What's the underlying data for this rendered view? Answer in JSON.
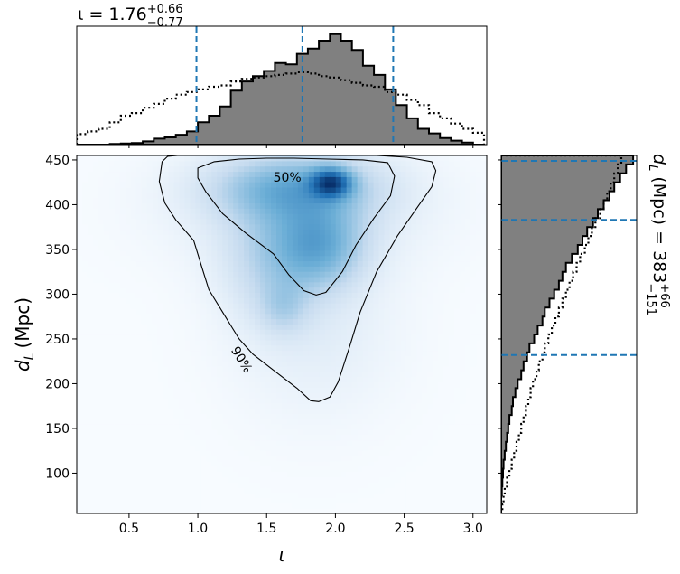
{
  "chart_data": {
    "type": "corner",
    "colors": {
      "density_colormap": [
        "#f7fbff",
        "#c6dbef",
        "#6baed6",
        "#2171b5",
        "#08306b"
      ],
      "histogram_fill": "#808080",
      "quantile_line": "#1f77b4",
      "outline": "#000000"
    },
    "joint": {
      "type": "heatmap",
      "xlabel": "ι",
      "ylabel_main": "d",
      "ylabel_sub": "L",
      "ylabel_unit": "(Mpc)",
      "xlim": [
        0.12,
        3.1
      ],
      "ylim": [
        55,
        455
      ],
      "xticks": [
        0.5,
        1.0,
        1.5,
        2.0,
        2.5,
        3.0
      ],
      "xtick_labels": [
        "0.5",
        "1.0",
        "1.5",
        "2.0",
        "2.5",
        "3.0"
      ],
      "yticks": [
        100,
        150,
        200,
        250,
        300,
        350,
        400,
        450
      ],
      "ytick_labels": [
        "100",
        "150",
        "200",
        "250",
        "300",
        "350",
        "400",
        "450"
      ],
      "density_components": [
        {
          "x": 1.97,
          "y": 425,
          "sx": 0.1,
          "sy": 11,
          "w": 1.0
        },
        {
          "x": 1.7,
          "y": 420,
          "sx": 0.4,
          "sy": 25,
          "w": 0.55
        },
        {
          "x": 1.9,
          "y": 355,
          "sx": 0.22,
          "sy": 32,
          "w": 0.55
        },
        {
          "x": 1.55,
          "y": 340,
          "sx": 0.25,
          "sy": 45,
          "w": 0.3
        },
        {
          "x": 1.62,
          "y": 285,
          "sx": 0.12,
          "sy": 20,
          "w": 0.22
        },
        {
          "x": 1.85,
          "y": 270,
          "sx": 0.4,
          "sy": 70,
          "w": 0.12
        },
        {
          "x": 1.75,
          "y": 400,
          "sx": 0.6,
          "sy": 45,
          "w": 0.18
        }
      ],
      "contours": [
        {
          "label": "50%",
          "label_at": [
            1.65,
            431
          ],
          "label_rotation": 0,
          "points": [
            [
              1.0,
              441
            ],
            [
              1.12,
              448
            ],
            [
              1.3,
              451
            ],
            [
              1.5,
              452
            ],
            [
              1.7,
              452
            ],
            [
              1.95,
              451
            ],
            [
              2.2,
              450
            ],
            [
              2.38,
              447
            ],
            [
              2.43,
              432
            ],
            [
              2.4,
              410
            ],
            [
              2.28,
              385
            ],
            [
              2.15,
              355
            ],
            [
              2.05,
              325
            ],
            [
              1.93,
              302
            ],
            [
              1.86,
              299
            ],
            [
              1.77,
              304
            ],
            [
              1.66,
              322
            ],
            [
              1.55,
              345
            ],
            [
              1.35,
              368
            ],
            [
              1.18,
              390
            ],
            [
              1.06,
              414
            ],
            [
              1.0,
              430
            ]
          ]
        },
        {
          "label": "90%",
          "label_at": [
            1.32,
            227
          ],
          "label_rotation": 58,
          "points": [
            [
              0.78,
              454
            ],
            [
              0.92,
              456
            ],
            [
              1.2,
              457
            ],
            [
              1.5,
              457
            ],
            [
              1.8,
              456
            ],
            [
              2.1,
              455
            ],
            [
              2.3,
              455
            ],
            [
              2.52,
              453
            ],
            [
              2.7,
              448
            ],
            [
              2.73,
              438
            ],
            [
              2.7,
              420
            ],
            [
              2.6,
              398
            ],
            [
              2.45,
              365
            ],
            [
              2.3,
              325
            ],
            [
              2.18,
              280
            ],
            [
              2.1,
              240
            ],
            [
              2.02,
              202
            ],
            [
              1.96,
              185
            ],
            [
              1.88,
              180
            ],
            [
              1.82,
              181
            ],
            [
              1.72,
              195
            ],
            [
              1.55,
              215
            ],
            [
              1.4,
              233
            ],
            [
              1.3,
              250
            ],
            [
              1.2,
              275
            ],
            [
              1.08,
              305
            ],
            [
              1.03,
              330
            ],
            [
              0.97,
              360
            ],
            [
              0.84,
              383
            ],
            [
              0.76,
              402
            ],
            [
              0.72,
              426
            ],
            [
              0.74,
              448
            ]
          ]
        }
      ]
    },
    "marginal_x": {
      "type": "histogram",
      "variable": "ι",
      "title_prefix": "ι = 1.76",
      "title_sup": "+0.66",
      "title_sub": "−0.77",
      "quantiles": [
        0.99,
        1.76,
        2.42
      ],
      "bin_edges": [
        0.12,
        0.2,
        0.28,
        0.36,
        0.44,
        0.52,
        0.6,
        0.68,
        0.76,
        0.84,
        0.92,
        1.0,
        1.08,
        1.16,
        1.24,
        1.32,
        1.4,
        1.48,
        1.56,
        1.64,
        1.72,
        1.8,
        1.88,
        1.96,
        2.04,
        2.12,
        2.2,
        2.28,
        2.36,
        2.44,
        2.52,
        2.6,
        2.68,
        2.76,
        2.84,
        2.92,
        3.0,
        3.08
      ],
      "posterior": [
        0,
        0,
        0,
        0.5,
        0.8,
        1.2,
        2.5,
        4.5,
        5.5,
        7.5,
        10,
        17,
        22,
        29,
        41,
        48,
        52,
        56,
        62,
        61,
        69,
        73,
        79,
        84,
        79,
        72,
        60,
        53,
        42,
        30,
        20,
        12,
        8.5,
        5,
        3,
        1.5,
        0
      ],
      "prior": [
        8,
        10,
        12,
        17,
        22,
        24,
        28,
        31,
        35,
        38,
        40,
        42,
        44,
        45,
        48,
        50,
        51,
        52,
        53,
        54,
        55,
        54,
        52,
        51,
        49,
        47,
        45,
        44,
        40,
        38,
        34,
        30,
        24,
        20,
        16,
        12,
        9
      ],
      "ymax": 90
    },
    "marginal_y": {
      "type": "histogram",
      "variable": "d_L (Mpc)",
      "side_label_main": "d",
      "side_label_sub": "L",
      "side_label_rest": " (Mpc) = 383",
      "side_label_sup": "+66",
      "side_label_lowsub": "−151",
      "quantiles": [
        232,
        383,
        449
      ],
      "bin_edges": [
        55,
        65,
        75,
        85,
        95,
        105,
        115,
        125,
        135,
        145,
        155,
        165,
        175,
        185,
        195,
        205,
        215,
        225,
        235,
        245,
        255,
        265,
        275,
        285,
        295,
        305,
        315,
        325,
        335,
        345,
        355,
        365,
        375,
        385,
        395,
        405,
        415,
        425,
        435,
        445,
        455
      ],
      "posterior": [
        0,
        0,
        0.5,
        1,
        1.5,
        2,
        3,
        4,
        5,
        6,
        7,
        9,
        10,
        12,
        14,
        17,
        19,
        22,
        24,
        28,
        31,
        35,
        37,
        41,
        45,
        49,
        52,
        55,
        60,
        65,
        69,
        73,
        78,
        82,
        87,
        92,
        96,
        101,
        106,
        112
      ],
      "prior": [
        1,
        2,
        3,
        5,
        7,
        9,
        11,
        13,
        15,
        17,
        19,
        21,
        23,
        25,
        27,
        30,
        32,
        35,
        37,
        40,
        43,
        46,
        49,
        52,
        55,
        58,
        61,
        64,
        67,
        71,
        74,
        77,
        80,
        84,
        87,
        90,
        93,
        96,
        99,
        102
      ],
      "xmax": 115
    }
  }
}
